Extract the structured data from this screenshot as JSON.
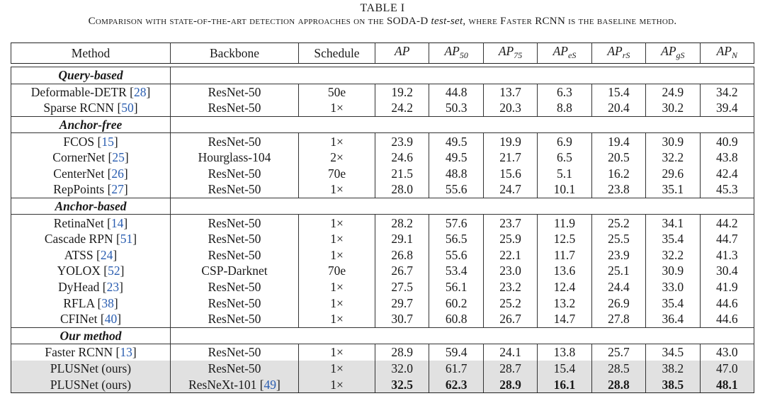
{
  "caption": {
    "title": "TABLE I",
    "text_pre": "Comparison with state-of-the-art detection approaches on the SODA-D ",
    "text_italic": "test-set",
    "text_post": ", where Faster RCNN is the baseline method."
  },
  "columns": {
    "method": "Method",
    "backbone": "Backbone",
    "schedule": "Schedule",
    "metrics": [
      {
        "base": "AP",
        "sub": ""
      },
      {
        "base": "AP",
        "sub": "50"
      },
      {
        "base": "AP",
        "sub": "75"
      },
      {
        "base": "AP",
        "sub": "eS"
      },
      {
        "base": "AP",
        "sub": "rS"
      },
      {
        "base": "AP",
        "sub": "gS"
      },
      {
        "base": "AP",
        "sub": "N"
      }
    ]
  },
  "sections": [
    {
      "label": "Query-based",
      "rows": [
        {
          "method": "Deformable-DETR",
          "ref": "28",
          "backbone": "ResNet-50",
          "backbone_ref": "",
          "schedule": "50e",
          "metrics": [
            "19.2",
            "44.8",
            "13.7",
            "6.3",
            "15.4",
            "24.9",
            "34.2"
          ],
          "highlight": false,
          "bold": false
        },
        {
          "method": "Sparse RCNN",
          "ref": "50",
          "backbone": "ResNet-50",
          "backbone_ref": "",
          "schedule": "1×",
          "metrics": [
            "24.2",
            "50.3",
            "20.3",
            "8.8",
            "20.4",
            "30.2",
            "39.4"
          ],
          "highlight": false,
          "bold": false
        }
      ]
    },
    {
      "label": "Anchor-free",
      "rows": [
        {
          "method": "FCOS",
          "ref": "15",
          "backbone": "ResNet-50",
          "backbone_ref": "",
          "schedule": "1×",
          "metrics": [
            "23.9",
            "49.5",
            "19.9",
            "6.9",
            "19.4",
            "30.9",
            "40.9"
          ],
          "highlight": false,
          "bold": false
        },
        {
          "method": "CornerNet",
          "ref": "25",
          "backbone": "Hourglass-104",
          "backbone_ref": "",
          "schedule": "2×",
          "metrics": [
            "24.6",
            "49.5",
            "21.7",
            "6.5",
            "20.5",
            "32.2",
            "43.8"
          ],
          "highlight": false,
          "bold": false
        },
        {
          "method": "CenterNet",
          "ref": "26",
          "backbone": "ResNet-50",
          "backbone_ref": "",
          "schedule": "70e",
          "metrics": [
            "21.5",
            "48.8",
            "15.6",
            "5.1",
            "16.2",
            "29.6",
            "42.4"
          ],
          "highlight": false,
          "bold": false
        },
        {
          "method": "RepPoints",
          "ref": "27",
          "backbone": "ResNet-50",
          "backbone_ref": "",
          "schedule": "1×",
          "metrics": [
            "28.0",
            "55.6",
            "24.7",
            "10.1",
            "23.8",
            "35.1",
            "45.3"
          ],
          "highlight": false,
          "bold": false
        }
      ]
    },
    {
      "label": "Anchor-based",
      "rows": [
        {
          "method": "RetinaNet",
          "ref": "14",
          "backbone": "ResNet-50",
          "backbone_ref": "",
          "schedule": "1×",
          "metrics": [
            "28.2",
            "57.6",
            "23.7",
            "11.9",
            "25.2",
            "34.1",
            "44.2"
          ],
          "highlight": false,
          "bold": false
        },
        {
          "method": "Cascade RPN",
          "ref": "51",
          "backbone": "ResNet-50",
          "backbone_ref": "",
          "schedule": "1×",
          "metrics": [
            "29.1",
            "56.5",
            "25.9",
            "12.5",
            "25.5",
            "35.4",
            "44.7"
          ],
          "highlight": false,
          "bold": false
        },
        {
          "method": "ATSS",
          "ref": "24",
          "backbone": "ResNet-50",
          "backbone_ref": "",
          "schedule": "1×",
          "metrics": [
            "26.8",
            "55.6",
            "22.1",
            "11.7",
            "23.9",
            "32.2",
            "41.3"
          ],
          "highlight": false,
          "bold": false
        },
        {
          "method": "YOLOX",
          "ref": "52",
          "backbone": "CSP-Darknet",
          "backbone_ref": "",
          "schedule": "70e",
          "metrics": [
            "26.7",
            "53.4",
            "23.0",
            "13.6",
            "25.1",
            "30.9",
            "30.4"
          ],
          "highlight": false,
          "bold": false
        },
        {
          "method": "DyHead",
          "ref": "23",
          "backbone": "ResNet-50",
          "backbone_ref": "",
          "schedule": "1×",
          "metrics": [
            "27.5",
            "56.1",
            "23.2",
            "12.4",
            "24.4",
            "33.0",
            "41.9"
          ],
          "highlight": false,
          "bold": false
        },
        {
          "method": "RFLA",
          "ref": "38",
          "backbone": "ResNet-50",
          "backbone_ref": "",
          "schedule": "1×",
          "metrics": [
            "29.7",
            "60.2",
            "25.2",
            "13.2",
            "26.9",
            "35.4",
            "44.6"
          ],
          "highlight": false,
          "bold": false
        },
        {
          "method": "CFINet",
          "ref": "40",
          "backbone": "ResNet-50",
          "backbone_ref": "",
          "schedule": "1×",
          "metrics": [
            "30.7",
            "60.8",
            "26.7",
            "14.7",
            "27.8",
            "36.4",
            "44.6"
          ],
          "highlight": false,
          "bold": false
        }
      ]
    },
    {
      "label": "Our method",
      "rows": [
        {
          "method": "Faster RCNN",
          "ref": "13",
          "backbone": "ResNet-50",
          "backbone_ref": "",
          "schedule": "1×",
          "metrics": [
            "28.9",
            "59.4",
            "24.1",
            "13.8",
            "25.7",
            "34.5",
            "43.0"
          ],
          "highlight": false,
          "bold": false
        },
        {
          "method": "PLUSNet (ours)",
          "ref": "",
          "backbone": "ResNet-50",
          "backbone_ref": "",
          "schedule": "1×",
          "metrics": [
            "32.0",
            "61.7",
            "28.7",
            "15.4",
            "28.5",
            "38.2",
            "47.0"
          ],
          "highlight": true,
          "bold": false
        },
        {
          "method": "PLUSNet (ours)",
          "ref": "",
          "backbone": "ResNeXt-101",
          "backbone_ref": "49",
          "schedule": "1×",
          "metrics": [
            "32.5",
            "62.3",
            "28.9",
            "16.1",
            "28.8",
            "38.5",
            "48.1"
          ],
          "highlight": true,
          "bold": true
        }
      ]
    }
  ]
}
